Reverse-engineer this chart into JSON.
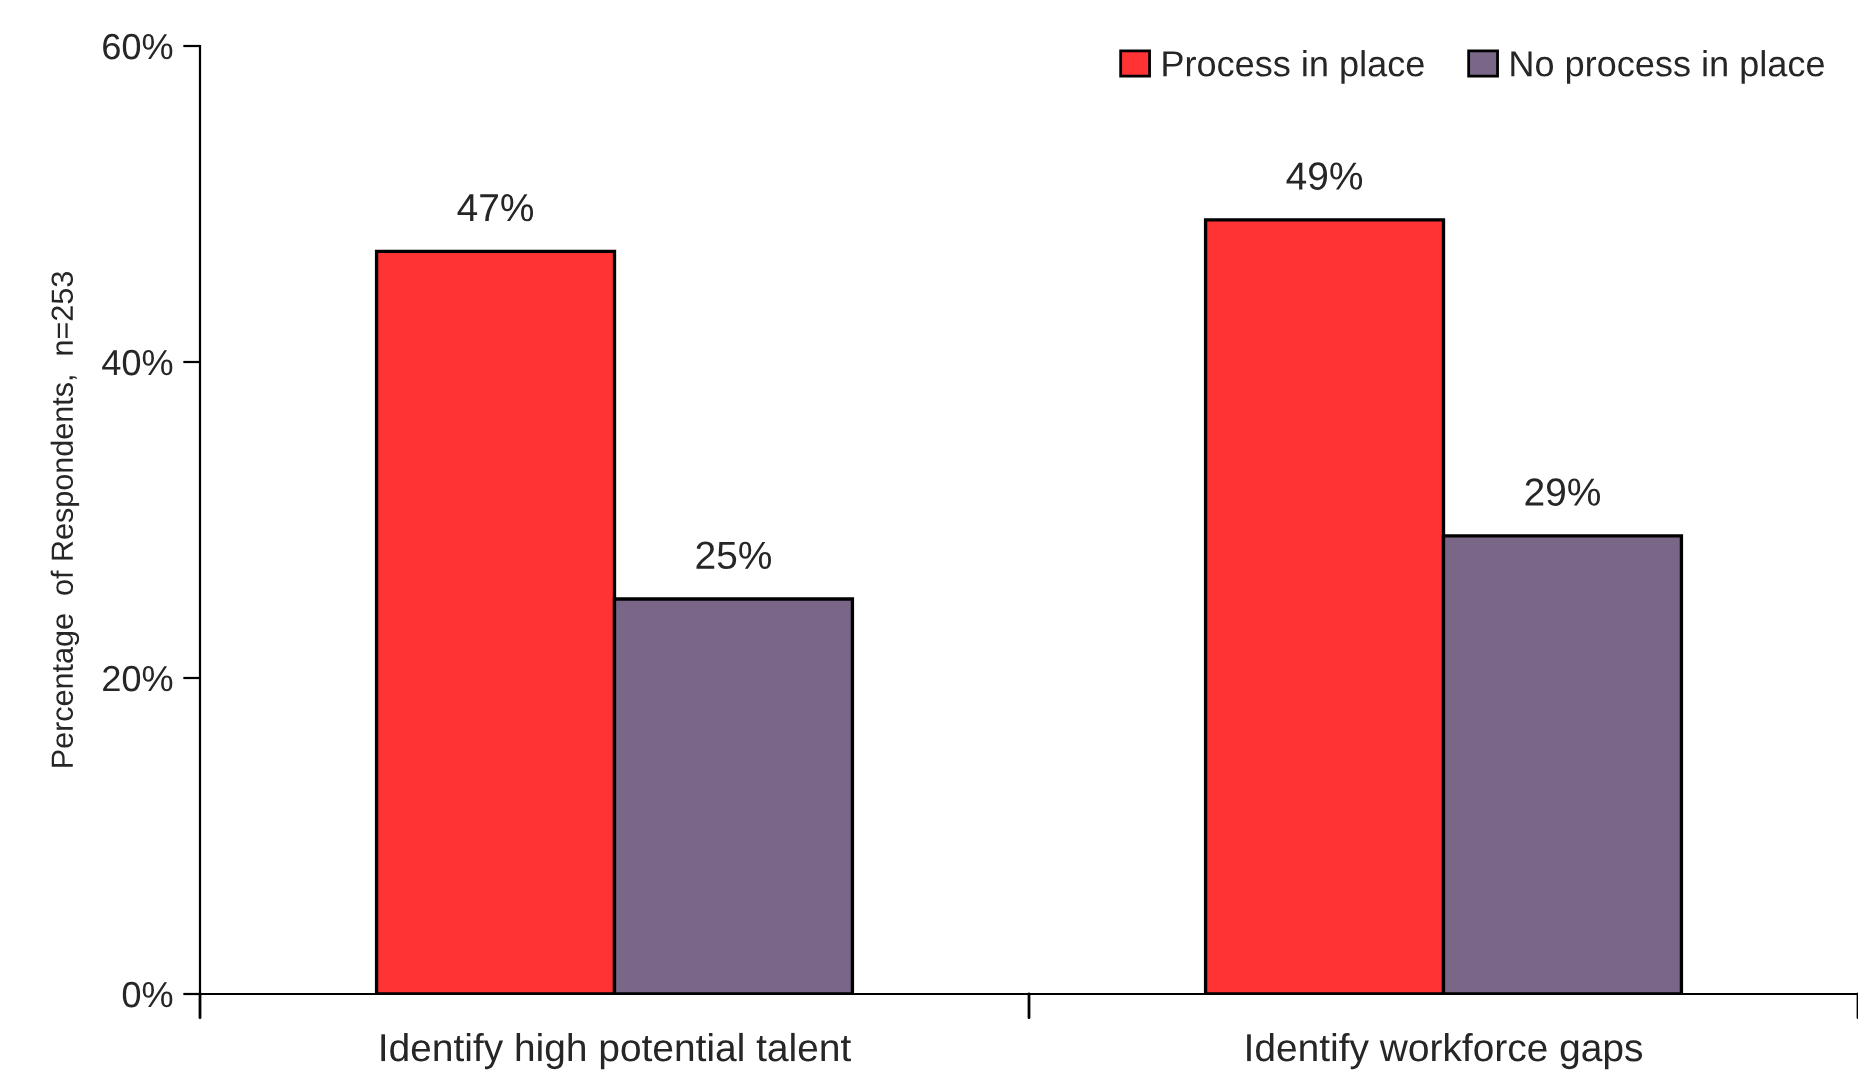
{
  "chart_data": {
    "type": "bar",
    "ylabel": "Percentage  of Respondents,  n=253",
    "categories": [
      "Identify high potential talent",
      "Identify workforce gaps"
    ],
    "series": [
      {
        "name": "Process in place",
        "color": "#ff3333",
        "values": [
          47,
          49
        ],
        "value_labels": [
          "47%",
          "49%"
        ]
      },
      {
        "name": "No process in place",
        "color": "#7a6788",
        "values": [
          25,
          29
        ],
        "value_labels": [
          "25%",
          "29%"
        ]
      }
    ],
    "ylim": [
      0,
      60
    ],
    "yticks": [
      {
        "value": 0,
        "label": "0%"
      },
      {
        "value": 20,
        "label": "20%"
      },
      {
        "value": 40,
        "label": "40%"
      },
      {
        "value": 60,
        "label": "60%"
      }
    ],
    "grid": false,
    "legend": "top right"
  }
}
